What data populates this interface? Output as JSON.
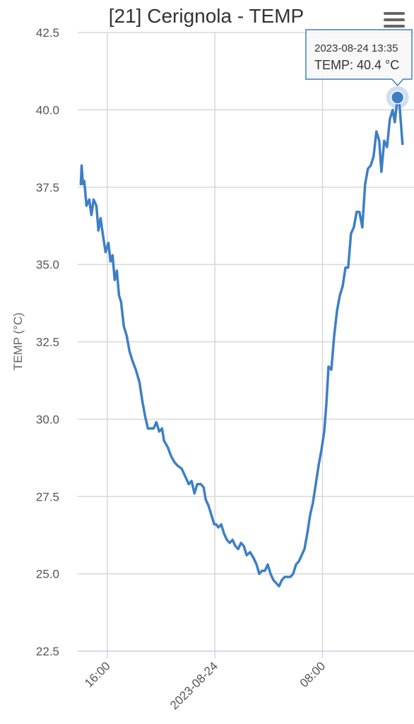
{
  "chart_data": {
    "type": "line",
    "title": "[21] Cerignola - TEMP",
    "y_label": "TEMP (°C)",
    "color": "#3d7fc6",
    "grid": true,
    "xlim": [
      -10.2,
      14.7
    ],
    "xticks": [
      {
        "value": -8,
        "label": "16:00"
      },
      {
        "value": 0,
        "label": "2023-08-24"
      },
      {
        "value": 8,
        "label": "08:00"
      }
    ],
    "ylim": [
      22.5,
      42.5
    ],
    "yticks": [
      22.5,
      {
        "value": 25,
        "label": "25.0"
      },
      27.5,
      {
        "value": 30,
        "label": "30.0"
      },
      32.5,
      {
        "value": 35,
        "label": "35.0"
      },
      37.5,
      {
        "value": 40,
        "label": "40.0"
      },
      42.5
    ],
    "x": [
      -9.97,
      -9.91,
      -9.81,
      -9.71,
      -9.55,
      -9.34,
      -9.18,
      -9.02,
      -8.81,
      -8.66,
      -8.5,
      -8.34,
      -8.13,
      -7.92,
      -7.76,
      -7.61,
      -7.45,
      -7.29,
      -7.13,
      -6.98,
      -6.77,
      -6.56,
      -6.35,
      -6.14,
      -5.88,
      -5.61,
      -5.4,
      -5.19,
      -4.98,
      -4.77,
      -4.56,
      -4.35,
      -4.14,
      -3.93,
      -3.78,
      -3.51,
      -3.25,
      -2.99,
      -2.78,
      -2.47,
      -2.15,
      -1.94,
      -1.73,
      -1.52,
      -1.31,
      -1.05,
      -0.84,
      -0.68,
      -0.47,
      -0.26,
      -0.05,
      0.1,
      0.26,
      0.47,
      0.68,
      0.89,
      1.1,
      1.31,
      1.52,
      1.73,
      1.94,
      2.15,
      2.36,
      2.62,
      2.89,
      3.1,
      3.3,
      3.51,
      3.72,
      3.93,
      4.14,
      4.35,
      4.56,
      4.77,
      4.98,
      5.19,
      5.4,
      5.61,
      5.82,
      6.03,
      6.24,
      6.45,
      6.66,
      6.87,
      7.08,
      7.29,
      7.5,
      7.71,
      7.92,
      8.13,
      8.29,
      8.45,
      8.66,
      8.87,
      9.08,
      9.29,
      9.5,
      9.71,
      9.91,
      10.12,
      10.33,
      10.54,
      10.75,
      10.96,
      11.17,
      11.38,
      11.59,
      11.8,
      12.01,
      12.22,
      12.38,
      12.59,
      12.8,
      13.01,
      13.22,
      13.38,
      13.58,
      13.74,
      13.95
    ],
    "values": [
      37.6,
      38.2,
      37.6,
      37.7,
      36.9,
      37.1,
      36.6,
      37.1,
      36.9,
      36.1,
      36.5,
      36.0,
      35.4,
      35.7,
      35.1,
      35.3,
      34.5,
      34.8,
      34.0,
      33.8,
      33.0,
      32.7,
      32.2,
      31.9,
      31.6,
      31.2,
      30.6,
      30.1,
      29.7,
      29.7,
      29.7,
      29.9,
      29.6,
      29.7,
      29.3,
      29.1,
      28.8,
      28.6,
      28.5,
      28.4,
      28.1,
      27.9,
      28.0,
      27.6,
      27.9,
      27.9,
      27.8,
      27.4,
      27.2,
      26.9,
      26.6,
      26.6,
      26.5,
      26.6,
      26.3,
      26.1,
      26.0,
      26.1,
      25.9,
      25.8,
      26.0,
      25.9,
      25.6,
      25.7,
      25.5,
      25.3,
      25.0,
      25.1,
      25.1,
      25.3,
      25.0,
      24.8,
      24.7,
      24.6,
      24.8,
      24.9,
      24.9,
      24.9,
      25.0,
      25.3,
      25.4,
      25.6,
      25.8,
      26.3,
      26.9,
      27.3,
      27.9,
      28.5,
      29.0,
      29.6,
      30.5,
      31.7,
      31.6,
      32.7,
      33.5,
      34.0,
      34.3,
      34.9,
      34.9,
      36.0,
      36.2,
      36.7,
      36.7,
      36.2,
      37.6,
      38.1,
      38.2,
      38.5,
      39.3,
      39.0,
      38.0,
      39.0,
      38.8,
      39.7,
      40.0,
      39.6,
      40.4,
      40.1,
      38.9
    ],
    "tooltip": {
      "x_label": "2023-08-24 13:35",
      "label": "TEMP: 40.4 °C",
      "x": 13.58,
      "value": 40.4
    }
  }
}
